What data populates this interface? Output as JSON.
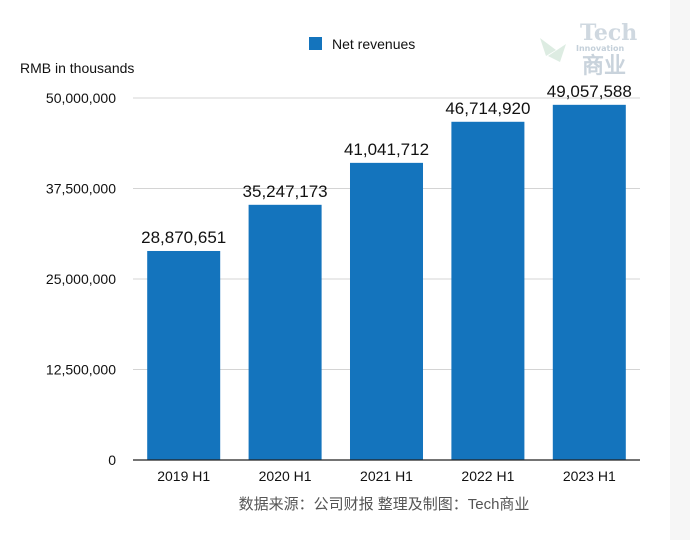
{
  "chart_data": {
    "type": "bar",
    "categories": [
      "2019 H1",
      "2020 H1",
      "2021 H1",
      "2022 H1",
      "2023 H1"
    ],
    "series": [
      {
        "name": "Net revenues",
        "values": [
          28870651,
          35247173,
          41041712,
          46714920,
          49057588
        ]
      }
    ],
    "data_labels": [
      "28,870,651",
      "35,247,173",
      "41,041,712",
      "46,714,920",
      "49,057,588"
    ],
    "title": "",
    "xlabel": "",
    "ylabel": "RMB in thousands",
    "ylim": [
      0,
      50000000
    ],
    "yticks": [
      0,
      12500000,
      25000000,
      37500000,
      50000000
    ],
    "ytick_labels": [
      "0",
      "12,500,000",
      "25,000,000",
      "37,500,000",
      "50,000,000"
    ],
    "grid": true,
    "legend_position": "top-center",
    "bar_color": "#1474bd"
  },
  "source_note": "数据来源：公司财报 整理及制图：Tech商业",
  "watermark": {
    "title": "Tech",
    "subtitle": "Innovation",
    "chinese": "商业",
    "icon": "leaf-arrow-icon"
  }
}
